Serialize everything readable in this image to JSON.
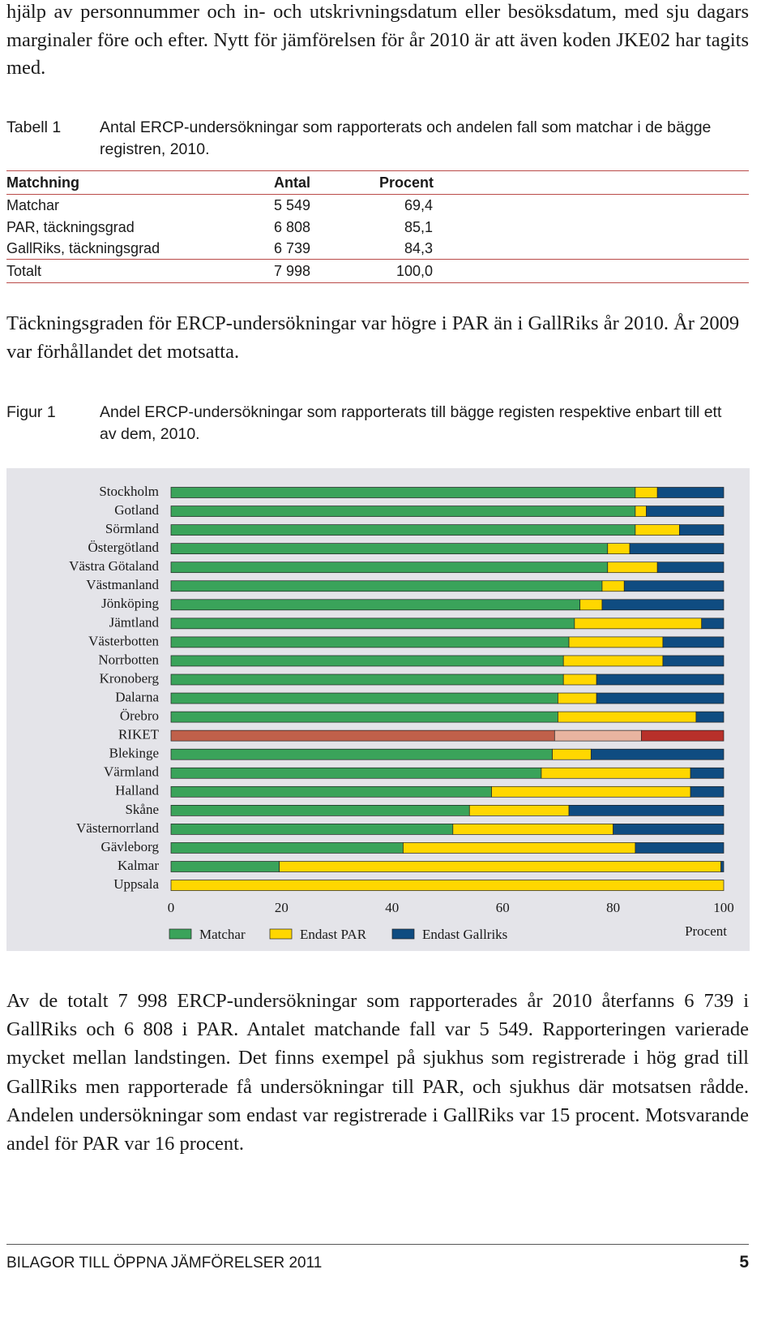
{
  "paragraphs": [
    "hjälp av personnummer och in- och utskrivningsdatum eller besöksdatum, med sju dagars marginaler före och efter. Nytt för jämförelsen för år 2010 är att även koden JKE02 har tagits med.",
    "Täckningsgraden för ERCP-undersökningar var högre i PAR än i GallRiks år 2010. År 2009 var förhållandet det motsatta.",
    "Av de totalt 7 998 ERCP-undersökningar som rapporterades år 2010 återfanns 6 739 i GallRiks och 6 808 i PAR. Antalet matchande fall var 5 549. Rapporteringen varierade mycket mellan landstingen. Det finns exempel på sjukhus som registrerade i hög grad till GallRiks men rapporterade få undersökningar till PAR, och sjukhus där motsatsen rådde. Andelen undersökningar som endast var registrerade i GallRiks var 15 procent. Motsvarande andel för PAR var 16 procent."
  ],
  "table": {
    "label": "Tabell 1",
    "caption": "Antal ERCP-undersökningar som rapporterats och andelen fall som matchar i de bägge registren, 2010.",
    "header": [
      "Matchning",
      "Antal",
      "Procent"
    ],
    "rows": [
      [
        "Matchar",
        "5 549",
        "69,4"
      ],
      [
        "PAR, täckningsgrad",
        "6 808",
        "85,1"
      ],
      [
        "GallRiks, täckningsgrad",
        "6 739",
        "84,3"
      ],
      [
        "Totalt",
        "7 998",
        "100,0"
      ]
    ]
  },
  "figure": {
    "label": "Figur 1",
    "caption": "Andel ERCP-undersökningar som rapporterats till bägge registen respektive enbart till ett av dem, 2010."
  },
  "chart_data": {
    "type": "stacked-bar-horizontal",
    "categories": [
      "Stockholm",
      "Gotland",
      "Sörmland",
      "Östergötland",
      "Västra Götaland",
      "Västmanland",
      "Jönköping",
      "Jämtland",
      "Västerbotten",
      "Norrbotten",
      "Kronoberg",
      "Dalarna",
      "Örebro",
      "RIKET",
      "Blekinge",
      "Värmland",
      "Halland",
      "Skåne",
      "Västernorrland",
      "Gävleborg",
      "Kalmar",
      "Uppsala"
    ],
    "series": [
      {
        "name": "Matchar",
        "color": "#3aa35a",
        "highlight_color": "#c0604a",
        "values": [
          84,
          84,
          84,
          79,
          79,
          78,
          74,
          73,
          72,
          71,
          71,
          70,
          70,
          69.4,
          69,
          67,
          58,
          54,
          51,
          42,
          19.6,
          0
        ]
      },
      {
        "name": "Endast PAR",
        "color": "#ffd700",
        "highlight_color": "#e8b4a0",
        "values": [
          4,
          2,
          8,
          4,
          9,
          4,
          4,
          23,
          17,
          18,
          6,
          7,
          25,
          15.7,
          7,
          27,
          36,
          18,
          29,
          42,
          79.9,
          100
        ]
      },
      {
        "name": "Endast Gallriks",
        "color": "#0f4c81",
        "highlight_color": "#b8302a",
        "values": [
          12,
          14,
          8,
          17,
          12,
          18,
          22,
          4,
          11,
          11,
          23,
          23,
          5,
          14.9,
          24,
          6,
          6,
          28,
          20,
          16,
          0.5,
          0
        ]
      }
    ],
    "highlight": "RIKET",
    "xlim": [
      0,
      100
    ],
    "xticks": [
      0,
      20,
      40,
      60,
      80,
      100
    ],
    "xlabel": "Procent",
    "background": "#e4e4e9"
  },
  "footer": {
    "title": "BILAGOR TILL ÖPPNA JÄMFÖRELSER 2011",
    "page": "5"
  }
}
